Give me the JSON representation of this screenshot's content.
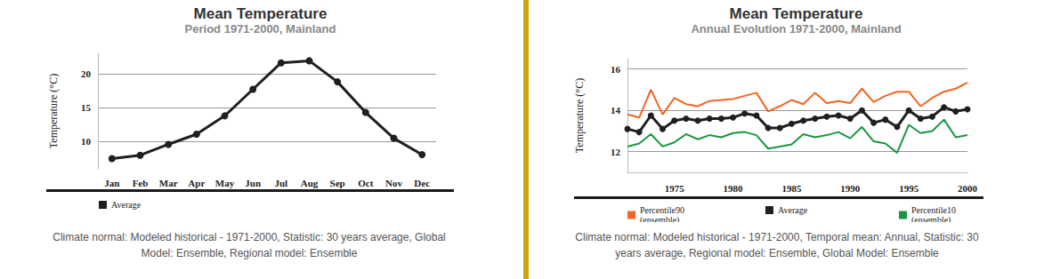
{
  "chart_data": [
    {
      "type": "line",
      "title": "Mean Temperature",
      "subtitle": "Period 1971-2000, Mainland",
      "y_label": "Temperature (°C)",
      "categories": [
        "Jan",
        "Feb",
        "Mar",
        "Apr",
        "May",
        "Jun",
        "Jul",
        "Aug",
        "Sep",
        "Oct",
        "Nov",
        "Dec"
      ],
      "series": [
        {
          "name": "Average",
          "color": "#1f1f1f",
          "marker": "circle",
          "values": [
            7.5,
            8.0,
            9.6,
            11.1,
            13.8,
            17.7,
            21.6,
            21.9,
            18.8,
            14.3,
            10.5,
            8.1
          ]
        }
      ],
      "ylim": [
        6,
        23
      ],
      "yticks": [
        10,
        15,
        20
      ],
      "grid": true,
      "legend": "bottom left",
      "caption": "Climate normal: Modeled historical - 1971-2000, Statistic: 30 years average, Global Model: Ensemble, Regional model: Ensemble"
    },
    {
      "type": "line",
      "title": "Mean Temperature",
      "subtitle": "Annual Evolution 1971-2000, Mainland",
      "y_label": "Temperature (°C)",
      "x": [
        1971,
        1972,
        1973,
        1974,
        1975,
        1976,
        1977,
        1978,
        1979,
        1980,
        1981,
        1982,
        1983,
        1984,
        1985,
        1986,
        1987,
        1988,
        1989,
        1990,
        1991,
        1992,
        1993,
        1994,
        1995,
        1996,
        1997,
        1998,
        1999,
        2000
      ],
      "series": [
        {
          "name": "Percentile90 (ensemble)",
          "color": "#f26522",
          "marker": "none",
          "values": [
            13.8,
            13.65,
            15.0,
            13.8,
            14.6,
            14.3,
            14.2,
            14.45,
            14.5,
            14.55,
            14.7,
            14.85,
            13.95,
            14.2,
            14.5,
            14.3,
            14.85,
            14.35,
            14.45,
            14.35,
            15.05,
            14.4,
            14.7,
            14.9,
            14.9,
            14.2,
            14.6,
            14.9,
            15.05,
            15.35
          ]
        },
        {
          "name": "Average",
          "color": "#1f1f1f",
          "marker": "circle",
          "values": [
            13.1,
            12.95,
            13.75,
            13.1,
            13.5,
            13.6,
            13.5,
            13.6,
            13.6,
            13.65,
            13.85,
            13.75,
            13.15,
            13.15,
            13.35,
            13.5,
            13.6,
            13.7,
            13.75,
            13.6,
            14.0,
            13.4,
            13.55,
            13.2,
            14.0,
            13.6,
            13.7,
            14.15,
            13.95,
            14.05
          ]
        },
        {
          "name": "Percentile10 (ensemble)",
          "color": "#1a9641",
          "marker": "none",
          "values": [
            12.25,
            12.4,
            12.85,
            12.25,
            12.45,
            12.85,
            12.6,
            12.8,
            12.7,
            12.9,
            12.95,
            12.8,
            12.15,
            12.25,
            12.35,
            12.85,
            12.7,
            12.8,
            12.95,
            12.65,
            13.2,
            12.5,
            12.4,
            11.95,
            13.3,
            12.9,
            13.0,
            13.55,
            12.7,
            12.8
          ]
        }
      ],
      "xlim": [
        1971,
        2000
      ],
      "xticks": [
        1975,
        1980,
        1985,
        1990,
        1995,
        2000
      ],
      "ylim": [
        11,
        16.5
      ],
      "yticks": [
        12,
        14,
        16
      ],
      "grid": true,
      "legend": "bottom",
      "caption": "Climate normal: Modeled historical - 1971-2000, Temporal mean: Annual, Statistic: 30 years average, Regional model: Ensemble, Global Model: Ensemble"
    }
  ]
}
